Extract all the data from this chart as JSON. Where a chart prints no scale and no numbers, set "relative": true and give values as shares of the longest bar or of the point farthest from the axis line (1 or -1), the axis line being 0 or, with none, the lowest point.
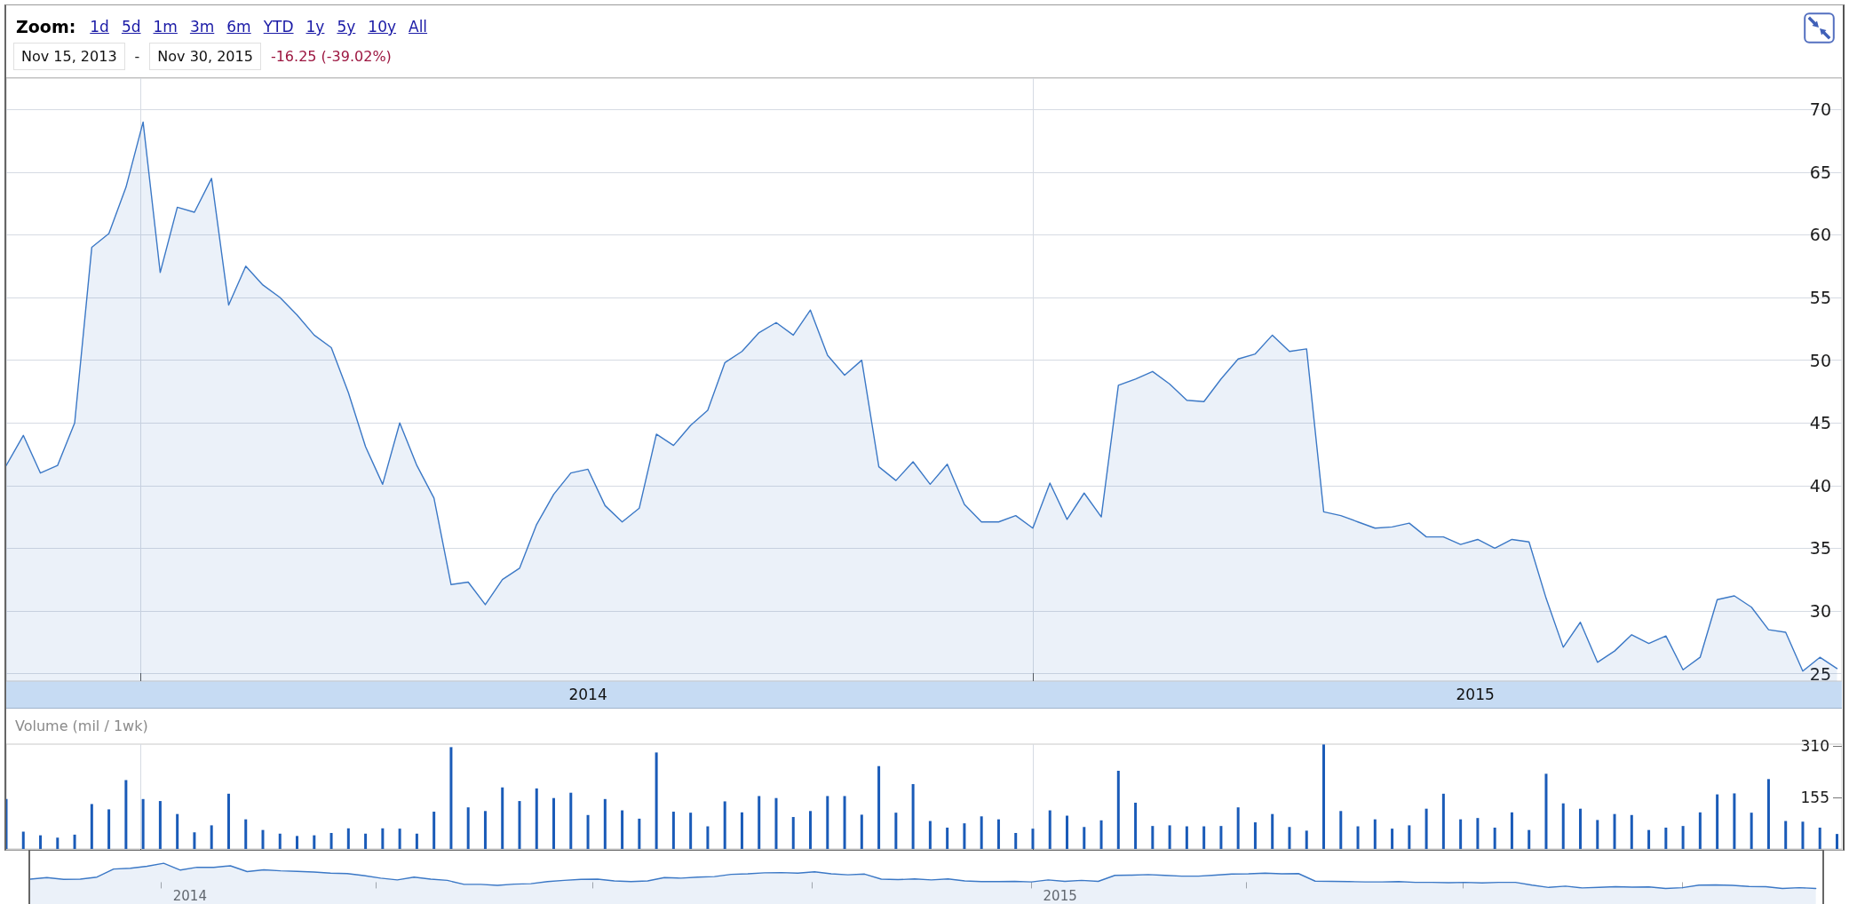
{
  "chart_data": [
    {
      "type": "area",
      "color": "#3b78c6",
      "annotations": [
        "Zoom:",
        "1d",
        "5d",
        "1m",
        "3m",
        "6m",
        "YTD",
        "1y",
        "5y",
        "10y",
        "All",
        "Nov 15, 2013",
        "-",
        "Nov 30, 2015",
        "-16.25 (-39.02%)"
      ],
      "x": [
        "2013-11-07",
        "2013-11-14",
        "2013-11-21",
        "2013-11-28",
        "2013-12-05",
        "2013-12-12",
        "2013-12-19",
        "2013-12-26",
        "2014-01-02",
        "2014-01-09",
        "2014-01-16",
        "2014-01-23",
        "2014-01-30",
        "2014-02-06",
        "2014-02-13",
        "2014-02-20",
        "2014-02-27",
        "2014-03-06",
        "2014-03-13",
        "2014-03-20",
        "2014-03-27",
        "2014-04-03",
        "2014-04-10",
        "2014-04-17",
        "2014-04-24",
        "2014-05-01",
        "2014-05-08",
        "2014-05-15",
        "2014-05-22",
        "2014-05-29",
        "2014-06-05",
        "2014-06-12",
        "2014-06-19",
        "2014-06-26",
        "2014-07-03",
        "2014-07-10",
        "2014-07-17",
        "2014-07-24",
        "2014-07-31",
        "2014-08-07",
        "2014-08-14",
        "2014-08-21",
        "2014-08-28",
        "2014-09-04",
        "2014-09-11",
        "2014-09-18",
        "2014-09-25",
        "2014-10-02",
        "2014-10-09",
        "2014-10-16",
        "2014-10-23",
        "2014-10-30",
        "2014-11-06",
        "2014-11-13",
        "2014-11-20",
        "2014-11-27",
        "2014-12-04",
        "2014-12-11",
        "2014-12-18",
        "2014-12-25",
        "2015-01-01",
        "2015-01-08",
        "2015-01-15",
        "2015-01-22",
        "2015-01-29",
        "2015-02-05",
        "2015-02-12",
        "2015-02-19",
        "2015-02-26",
        "2015-03-05",
        "2015-03-12",
        "2015-03-19",
        "2015-03-26",
        "2015-04-02",
        "2015-04-09",
        "2015-04-16",
        "2015-04-23",
        "2015-04-30",
        "2015-05-07",
        "2015-05-14",
        "2015-05-21",
        "2015-05-28",
        "2015-06-04",
        "2015-06-11",
        "2015-06-18",
        "2015-06-25",
        "2015-07-02",
        "2015-07-09",
        "2015-07-16",
        "2015-07-23",
        "2015-07-30",
        "2015-08-06",
        "2015-08-13",
        "2015-08-20",
        "2015-08-27",
        "2015-09-03",
        "2015-09-10",
        "2015-09-17",
        "2015-09-24",
        "2015-10-01",
        "2015-10-08",
        "2015-10-15",
        "2015-10-22",
        "2015-10-29",
        "2015-11-05",
        "2015-11-12",
        "2015-11-19",
        "2015-11-26"
      ],
      "values": [
        41.6,
        44.0,
        41.0,
        41.6,
        45.0,
        59.0,
        60.1,
        63.8,
        69.0,
        57.0,
        62.2,
        61.8,
        64.5,
        54.4,
        57.5,
        56.0,
        55.0,
        53.6,
        52.0,
        51.0,
        47.4,
        43.1,
        40.1,
        45.0,
        41.6,
        39.0,
        32.1,
        32.3,
        30.5,
        32.5,
        33.4,
        36.9,
        39.3,
        41.0,
        41.3,
        38.4,
        37.1,
        38.2,
        44.1,
        43.2,
        44.8,
        46.0,
        49.8,
        50.7,
        52.2,
        53.0,
        52.0,
        54.0,
        50.4,
        48.8,
        50.0,
        41.5,
        40.4,
        41.9,
        40.1,
        41.7,
        38.5,
        37.1,
        37.1,
        37.6,
        36.6,
        40.2,
        37.3,
        39.4,
        37.5,
        48.0,
        48.5,
        49.1,
        48.1,
        46.8,
        46.7,
        48.5,
        50.1,
        50.5,
        52.0,
        50.7,
        50.9,
        37.9,
        37.6,
        37.1,
        36.6,
        36.7,
        37.0,
        35.9,
        35.9,
        35.3,
        35.7,
        35.0,
        35.7,
        35.5,
        31.0,
        27.1,
        29.1,
        25.9,
        26.8,
        28.1,
        27.4,
        28.0,
        25.3,
        26.3,
        30.9,
        31.2,
        30.3,
        28.5,
        28.3,
        25.2,
        26.3,
        25.4
      ],
      "xlim": [
        "2013-11-07",
        "2015-11-28"
      ],
      "xticks": [
        {
          "value": "2014-01-01",
          "label": null
        },
        {
          "value": "2014-07-03",
          "label": "2014"
        },
        {
          "value": "2015-01-01",
          "label": null
        },
        {
          "value": "2015-07-01",
          "label": "2015"
        }
      ],
      "ylim": [
        24.4,
        72.5
      ],
      "yticks": [
        25,
        30,
        35,
        40,
        45,
        50,
        55,
        60,
        65,
        70
      ],
      "grid": true
    },
    {
      "type": "bar",
      "color": "#1a5bb8",
      "ylabel": "Volume (mil / 1wk)",
      "x": [
        "2013-11-07",
        "2013-11-14",
        "2013-11-21",
        "2013-11-28",
        "2013-12-05",
        "2013-12-12",
        "2013-12-19",
        "2013-12-26",
        "2014-01-02",
        "2014-01-09",
        "2014-01-16",
        "2014-01-23",
        "2014-01-30",
        "2014-02-06",
        "2014-02-13",
        "2014-02-20",
        "2014-02-27",
        "2014-03-06",
        "2014-03-13",
        "2014-03-20",
        "2014-03-27",
        "2014-04-03",
        "2014-04-10",
        "2014-04-17",
        "2014-04-24",
        "2014-05-01",
        "2014-05-08",
        "2014-05-15",
        "2014-05-22",
        "2014-05-29",
        "2014-06-05",
        "2014-06-12",
        "2014-06-19",
        "2014-06-26",
        "2014-07-03",
        "2014-07-10",
        "2014-07-17",
        "2014-07-24",
        "2014-07-31",
        "2014-08-07",
        "2014-08-14",
        "2014-08-21",
        "2014-08-28",
        "2014-09-04",
        "2014-09-11",
        "2014-09-18",
        "2014-09-25",
        "2014-10-02",
        "2014-10-09",
        "2014-10-16",
        "2014-10-23",
        "2014-10-30",
        "2014-11-06",
        "2014-11-13",
        "2014-11-20",
        "2014-11-27",
        "2014-12-04",
        "2014-12-11",
        "2014-12-18",
        "2014-12-25",
        "2015-01-01",
        "2015-01-08",
        "2015-01-15",
        "2015-01-22",
        "2015-01-29",
        "2015-02-05",
        "2015-02-12",
        "2015-02-19",
        "2015-02-26",
        "2015-03-05",
        "2015-03-12",
        "2015-03-19",
        "2015-03-26",
        "2015-04-02",
        "2015-04-09",
        "2015-04-16",
        "2015-04-23",
        "2015-04-30",
        "2015-05-07",
        "2015-05-14",
        "2015-05-21",
        "2015-05-28",
        "2015-06-04",
        "2015-06-11",
        "2015-06-18",
        "2015-06-25",
        "2015-07-02",
        "2015-07-09",
        "2015-07-16",
        "2015-07-23",
        "2015-07-30",
        "2015-08-06",
        "2015-08-13",
        "2015-08-20",
        "2015-08-27",
        "2015-09-03",
        "2015-09-10",
        "2015-09-17",
        "2015-09-24",
        "2015-10-01",
        "2015-10-08",
        "2015-10-15",
        "2015-10-22",
        "2015-10-29",
        "2015-11-05",
        "2015-11-12",
        "2015-11-19",
        "2015-11-26"
      ],
      "values": [
        150,
        52,
        41,
        34,
        43,
        135,
        119,
        207,
        150,
        144,
        105,
        50,
        71,
        166,
        89,
        57,
        46,
        39,
        41,
        48,
        62,
        46,
        62,
        61,
        46,
        112,
        306,
        125,
        114,
        185,
        144,
        182,
        153,
        169,
        102,
        150,
        116,
        91,
        290,
        112,
        109,
        68,
        143,
        110,
        159,
        153,
        96,
        114,
        159,
        159,
        103,
        249,
        109,
        195,
        84,
        64,
        77,
        98,
        89,
        48,
        61,
        116,
        100,
        66,
        86,
        235,
        139,
        69,
        71,
        68,
        68,
        69,
        125,
        80,
        105,
        66,
        55,
        314,
        114,
        68,
        89,
        61,
        71,
        121,
        166,
        89,
        93,
        64,
        110,
        57,
        226,
        137,
        121,
        87,
        105,
        102,
        57,
        64,
        69,
        110,
        164,
        167,
        109,
        210,
        84,
        82,
        64,
        45
      ],
      "xlim": [
        "2013-11-07",
        "2015-11-28"
      ],
      "xticks": [
        {
          "value": "2014-01-01",
          "label": null
        },
        {
          "value": "2015-01-01",
          "label": null
        }
      ],
      "ylim": [
        0,
        315
      ],
      "yticks": [
        155,
        310
      ],
      "grid": "x",
      "tick_labels": "y"
    },
    {
      "type": "area",
      "color": "#3b78c6",
      "relative": true,
      "x": [
        "2013-11-07",
        "2013-11-14",
        "2013-11-21",
        "2013-11-28",
        "2013-12-05",
        "2013-12-12",
        "2013-12-19",
        "2013-12-26",
        "2014-01-02",
        "2014-01-09",
        "2014-01-16",
        "2014-01-23",
        "2014-01-30",
        "2014-02-06",
        "2014-02-13",
        "2014-02-20",
        "2014-02-27",
        "2014-03-06",
        "2014-03-13",
        "2014-03-20",
        "2014-03-27",
        "2014-04-03",
        "2014-04-10",
        "2014-04-17",
        "2014-04-24",
        "2014-05-01",
        "2014-05-08",
        "2014-05-15",
        "2014-05-22",
        "2014-05-29",
        "2014-06-05",
        "2014-06-12",
        "2014-06-19",
        "2014-06-26",
        "2014-07-03",
        "2014-07-10",
        "2014-07-17",
        "2014-07-24",
        "2014-07-31",
        "2014-08-07",
        "2014-08-14",
        "2014-08-21",
        "2014-08-28",
        "2014-09-04",
        "2014-09-11",
        "2014-09-18",
        "2014-09-25",
        "2014-10-02",
        "2014-10-09",
        "2014-10-16",
        "2014-10-23",
        "2014-10-30",
        "2014-11-06",
        "2014-11-13",
        "2014-11-20",
        "2014-11-27",
        "2014-12-04",
        "2014-12-11",
        "2014-12-18",
        "2014-12-25",
        "2015-01-01",
        "2015-01-08",
        "2015-01-15",
        "2015-01-22",
        "2015-01-29",
        "2015-02-05",
        "2015-02-12",
        "2015-02-19",
        "2015-02-26",
        "2015-03-05",
        "2015-03-12",
        "2015-03-19",
        "2015-03-26",
        "2015-04-02",
        "2015-04-09",
        "2015-04-16",
        "2015-04-23",
        "2015-04-30",
        "2015-05-07",
        "2015-05-14",
        "2015-05-21",
        "2015-05-28",
        "2015-06-04",
        "2015-06-11",
        "2015-06-18",
        "2015-06-25",
        "2015-07-02",
        "2015-07-09",
        "2015-07-16",
        "2015-07-23",
        "2015-07-30",
        "2015-08-06",
        "2015-08-13",
        "2015-08-20",
        "2015-08-27",
        "2015-09-03",
        "2015-09-10",
        "2015-09-17",
        "2015-09-24",
        "2015-10-01",
        "2015-10-08",
        "2015-10-15",
        "2015-10-22",
        "2015-10-29",
        "2015-11-05",
        "2015-11-12",
        "2015-11-19",
        "2015-11-26"
      ],
      "values": [
        0.37,
        0.43,
        0.36,
        0.37,
        0.45,
        0.77,
        0.8,
        0.88,
        1,
        0.73,
        0.84,
        0.84,
        0.9,
        0.67,
        0.74,
        0.7,
        0.68,
        0.65,
        0.61,
        0.59,
        0.51,
        0.41,
        0.34,
        0.45,
        0.37,
        0.32,
        0.16,
        0.16,
        0.12,
        0.17,
        0.19,
        0.27,
        0.32,
        0.36,
        0.37,
        0.3,
        0.27,
        0.3,
        0.43,
        0.41,
        0.45,
        0.47,
        0.56,
        0.58,
        0.62,
        0.63,
        0.61,
        0.66,
        0.58,
        0.54,
        0.57,
        0.37,
        0.35,
        0.38,
        0.34,
        0.38,
        0.3,
        0.27,
        0.27,
        0.28,
        0.26,
        0.34,
        0.28,
        0.32,
        0.28,
        0.52,
        0.53,
        0.55,
        0.52,
        0.49,
        0.49,
        0.53,
        0.57,
        0.58,
        0.61,
        0.58,
        0.59,
        0.29,
        0.28,
        0.27,
        0.26,
        0.26,
        0.27,
        0.24,
        0.24,
        0.23,
        0.24,
        0.22,
        0.24,
        0.24,
        0.13,
        0.04,
        0.09,
        0.02,
        0.04,
        0.07,
        0.05,
        0.06,
        0,
        0.03,
        0.13,
        0.14,
        0.12,
        0.08,
        0.07,
        0,
        0.03,
        0
      ],
      "xlim": [
        "2013-11-07",
        "2015-11-28"
      ],
      "xticks": [
        {
          "value": "2014-01-01",
          "label": null
        },
        {
          "value": "2014-01-13",
          "label": "2014"
        },
        {
          "value": "2014-04-01",
          "label": null
        },
        {
          "value": "2014-07-01",
          "label": null
        },
        {
          "value": "2014-10-01",
          "label": null
        },
        {
          "value": "2015-01-01",
          "label": null
        },
        {
          "value": "2015-01-13",
          "label": "2015"
        },
        {
          "value": "2015-04-01",
          "label": null
        },
        {
          "value": "2015-07-01",
          "label": null
        },
        {
          "value": "2015-10-01",
          "label": null
        }
      ],
      "tick_labels": "x"
    }
  ]
}
